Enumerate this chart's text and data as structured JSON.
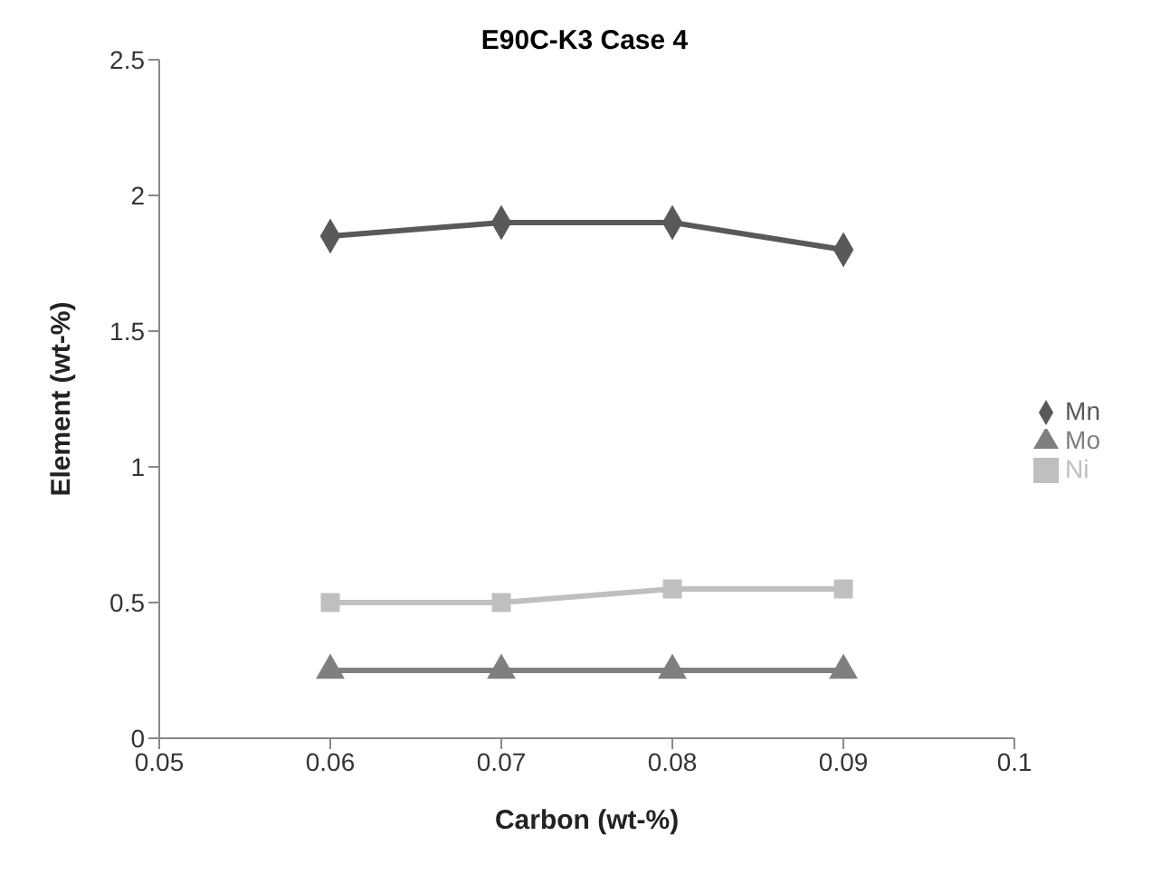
{
  "chart_data": {
    "type": "line",
    "title": "E90C-K3 Case 4",
    "xlabel": "Carbon (wt-%)",
    "ylabel": "Element (wt-%)",
    "categories": [
      "0.05",
      "0.06",
      "0.07",
      "0.08",
      "0.09",
      "0.1"
    ],
    "series": [
      {
        "name": "Mn",
        "color": "#595959",
        "marker": "diamond",
        "values": [
          null,
          1.85,
          1.9,
          1.9,
          1.8,
          null
        ]
      },
      {
        "name": "Ni",
        "color": "#bfbfbf",
        "marker": "square",
        "values": [
          null,
          0.5,
          0.5,
          0.55,
          0.55,
          null
        ]
      },
      {
        "name": "Mo",
        "color": "#7f7f7f",
        "marker": "triangle",
        "values": [
          null,
          0.25,
          0.25,
          0.25,
          0.25,
          null
        ]
      }
    ],
    "ylim": [
      0,
      2.5
    ],
    "yticks": [
      0,
      0.5,
      1,
      1.5,
      2,
      2.5
    ],
    "grid": false,
    "legend": "right",
    "line_style": "solid"
  }
}
